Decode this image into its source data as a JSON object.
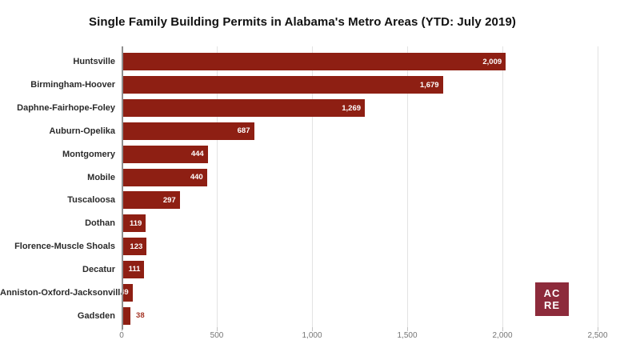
{
  "title": "Single Family Building Permits in Alabama's Metro Areas (YTD: July 2019)",
  "chart_data": {
    "type": "bar",
    "orientation": "horizontal",
    "title": "Single Family Building Permits in Alabama's Metro Areas (YTD: July 2019)",
    "categories": [
      "Huntsville",
      "Birmingham-Hoover",
      "Daphne-Fairhope-Foley",
      "Auburn-Opelika",
      "Montgomery",
      "Mobile",
      "Tuscaloosa",
      "Dothan",
      "Florence-Muscle Shoals",
      "Decatur",
      "Anniston-Oxford-Jacksonville",
      "Gadsden"
    ],
    "values": [
      2009,
      1679,
      1269,
      687,
      444,
      440,
      297,
      119,
      123,
      111,
      49,
      38
    ],
    "value_labels": [
      "2,009",
      "1,679",
      "1,269",
      "687",
      "444",
      "440",
      "297",
      "119",
      "123",
      "111",
      "49",
      "38"
    ],
    "xlabel": "",
    "ylabel": "",
    "xlim": [
      0,
      2500
    ],
    "x_ticks": [
      0,
      500,
      1000,
      1500,
      2000,
      2500
    ],
    "x_tick_labels": [
      "0",
      "500",
      "1,000",
      "1,500",
      "2,000",
      "2,500"
    ],
    "grid": true,
    "legend": false,
    "bar_color": "#8e1f13",
    "value_label_color_inside": "#ffffff",
    "value_label_color_outside": "#a53526",
    "outside_label_indices": [
      11
    ]
  },
  "logo": {
    "line1": "AC",
    "line2": "RE",
    "bg_color": "#8d2b3b",
    "text_color": "#ffffff"
  },
  "colors": {
    "background": "#ffffff",
    "grid": "#e3e3e3",
    "axis": "#8f8f8f",
    "tick_label": "#757575",
    "category_label": "#2b2b2b",
    "title": "#111111"
  }
}
